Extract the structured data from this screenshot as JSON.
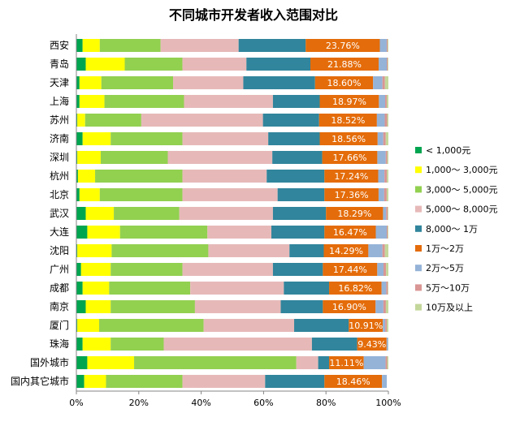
{
  "chart_data": {
    "type": "bar",
    "orientation": "horizontal",
    "stacked": true,
    "title": "不同城市开发者收入范围对比",
    "xlim": [
      0,
      100
    ],
    "xticks": [
      "0%",
      "20%",
      "40%",
      "60%",
      "80%",
      "100%"
    ],
    "grid": false,
    "legend_position": "right",
    "categories": [
      "西安",
      "青岛",
      "天津",
      "上海",
      "苏州",
      "济南",
      "深圳",
      "杭州",
      "北京",
      "武汉",
      "大连",
      "沈阳",
      "广州",
      "成都",
      "南京",
      "厦门",
      "珠海",
      "国外城市",
      "国内其它城市"
    ],
    "series": [
      {
        "name": "< 1,000元",
        "color": "#00a550",
        "values": [
          2.0,
          3.0,
          1.0,
          1.0,
          0.3,
          2.0,
          0.3,
          0.5,
          1.0,
          3.0,
          3.5,
          0.3,
          1.5,
          2.0,
          3.0,
          0.3,
          2.0,
          3.5,
          2.5
        ]
      },
      {
        "name": "1,000～ 3,000元",
        "color": "#ffff00",
        "values": [
          5.5,
          12.5,
          7.0,
          8.0,
          2.5,
          9.0,
          7.5,
          5.5,
          6.5,
          9.0,
          10.5,
          11.0,
          9.5,
          8.5,
          8.0,
          7.0,
          9.0,
          15.0,
          7.0
        ]
      },
      {
        "name": "3,000～ 5,000元",
        "color": "#92d050",
        "values": [
          19.5,
          18.5,
          23.0,
          25.5,
          18.0,
          23.0,
          21.5,
          28.0,
          26.5,
          21.0,
          28.0,
          31.0,
          23.0,
          26.0,
          27.0,
          33.5,
          17.0,
          52.0,
          24.5
        ]
      },
      {
        "name": "5,000～ 8,000元",
        "color": "#e6b9b8",
        "values": [
          25.0,
          20.5,
          22.5,
          28.5,
          39.0,
          27.5,
          33.5,
          27.0,
          30.5,
          30.0,
          20.5,
          26.0,
          29.0,
          30.0,
          27.5,
          29.0,
          47.5,
          7.0,
          26.5
        ]
      },
      {
        "name": "8,000～ 1万",
        "color": "#31859c",
        "values": [
          21.5,
          20.5,
          23.0,
          15.0,
          18.0,
          16.5,
          16.0,
          18.5,
          15.0,
          17.0,
          17.0,
          11.0,
          16.0,
          14.5,
          13.5,
          17.5,
          14.5,
          3.5,
          19.0
        ]
      },
      {
        "name": "1万～2万",
        "color": "#e46c0a",
        "values": [
          23.76,
          21.88,
          18.6,
          18.97,
          18.52,
          18.56,
          17.66,
          17.24,
          17.36,
          18.29,
          16.47,
          14.29,
          17.44,
          16.82,
          16.9,
          10.91,
          9.43,
          11.11,
          18.46
        ]
      },
      {
        "name": "2万～5万",
        "color": "#95b3d7",
        "values": [
          2.2,
          2.6,
          3.0,
          2.0,
          2.5,
          1.8,
          2.7,
          2.0,
          1.8,
          1.0,
          3.5,
          4.5,
          2.0,
          1.5,
          2.5,
          0.79,
          0.5,
          7.0,
          1.54
        ]
      },
      {
        "name": "5万～10万",
        "color": "#d99694",
        "values": [
          0.3,
          0.3,
          0.8,
          0.5,
          0.8,
          0.8,
          0.5,
          0.8,
          0.8,
          0.5,
          0.3,
          0.8,
          0.8,
          0.5,
          0.8,
          0.5,
          0.0,
          0.5,
          0.0
        ]
      },
      {
        "name": "10万及以上",
        "color": "#c4d79b",
        "values": [
          0.24,
          0.22,
          1.1,
          0.53,
          0.38,
          0.84,
          0.34,
          0.46,
          0.54,
          0.21,
          0.23,
          1.11,
          0.76,
          0.18,
          0.8,
          0.5,
          0.07,
          0.39,
          0.0
        ]
      }
    ],
    "data_labels": [
      "23.76%",
      "21.88%",
      "18.60%",
      "18.97%",
      "18.52%",
      "18.56%",
      "17.66%",
      "17.24%",
      "17.36%",
      "18.29%",
      "16.47%",
      "14.29%",
      "17.44%",
      "16.82%",
      "16.90%",
      "10.91%",
      "9.43%",
      "11.11%",
      "18.46%"
    ],
    "data_label_series": 5
  }
}
